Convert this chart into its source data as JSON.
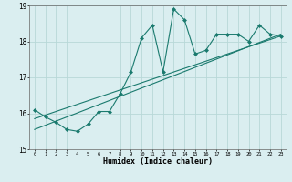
{
  "xlabel": "Humidex (Indice chaleur)",
  "x_data": [
    0,
    1,
    2,
    3,
    4,
    5,
    6,
    7,
    8,
    9,
    10,
    11,
    12,
    13,
    14,
    15,
    16,
    17,
    18,
    19,
    20,
    21,
    22,
    23
  ],
  "y_data": [
    16.1,
    15.9,
    15.75,
    15.55,
    15.5,
    15.7,
    16.05,
    16.05,
    16.55,
    17.15,
    18.1,
    18.45,
    17.15,
    18.9,
    18.6,
    17.65,
    17.75,
    18.2,
    18.2,
    18.2,
    18.0,
    18.45,
    18.2,
    18.15
  ],
  "bg_color": "#daeef0",
  "grid_color": "#b8d8d8",
  "line_color": "#1a7a6e",
  "marker_color": "#1a7a6e",
  "ylim": [
    15.0,
    19.0
  ],
  "xlim": [
    -0.5,
    23.5
  ],
  "yticks": [
    15,
    16,
    17,
    18,
    19
  ],
  "xticks": [
    0,
    1,
    2,
    3,
    4,
    5,
    6,
    7,
    8,
    9,
    10,
    11,
    12,
    13,
    14,
    15,
    16,
    17,
    18,
    19,
    20,
    21,
    22,
    23
  ],
  "trend1_y": [
    15.55,
    18.2
  ],
  "trend2_y": [
    15.85,
    18.15
  ],
  "trend_x": [
    0,
    23
  ]
}
